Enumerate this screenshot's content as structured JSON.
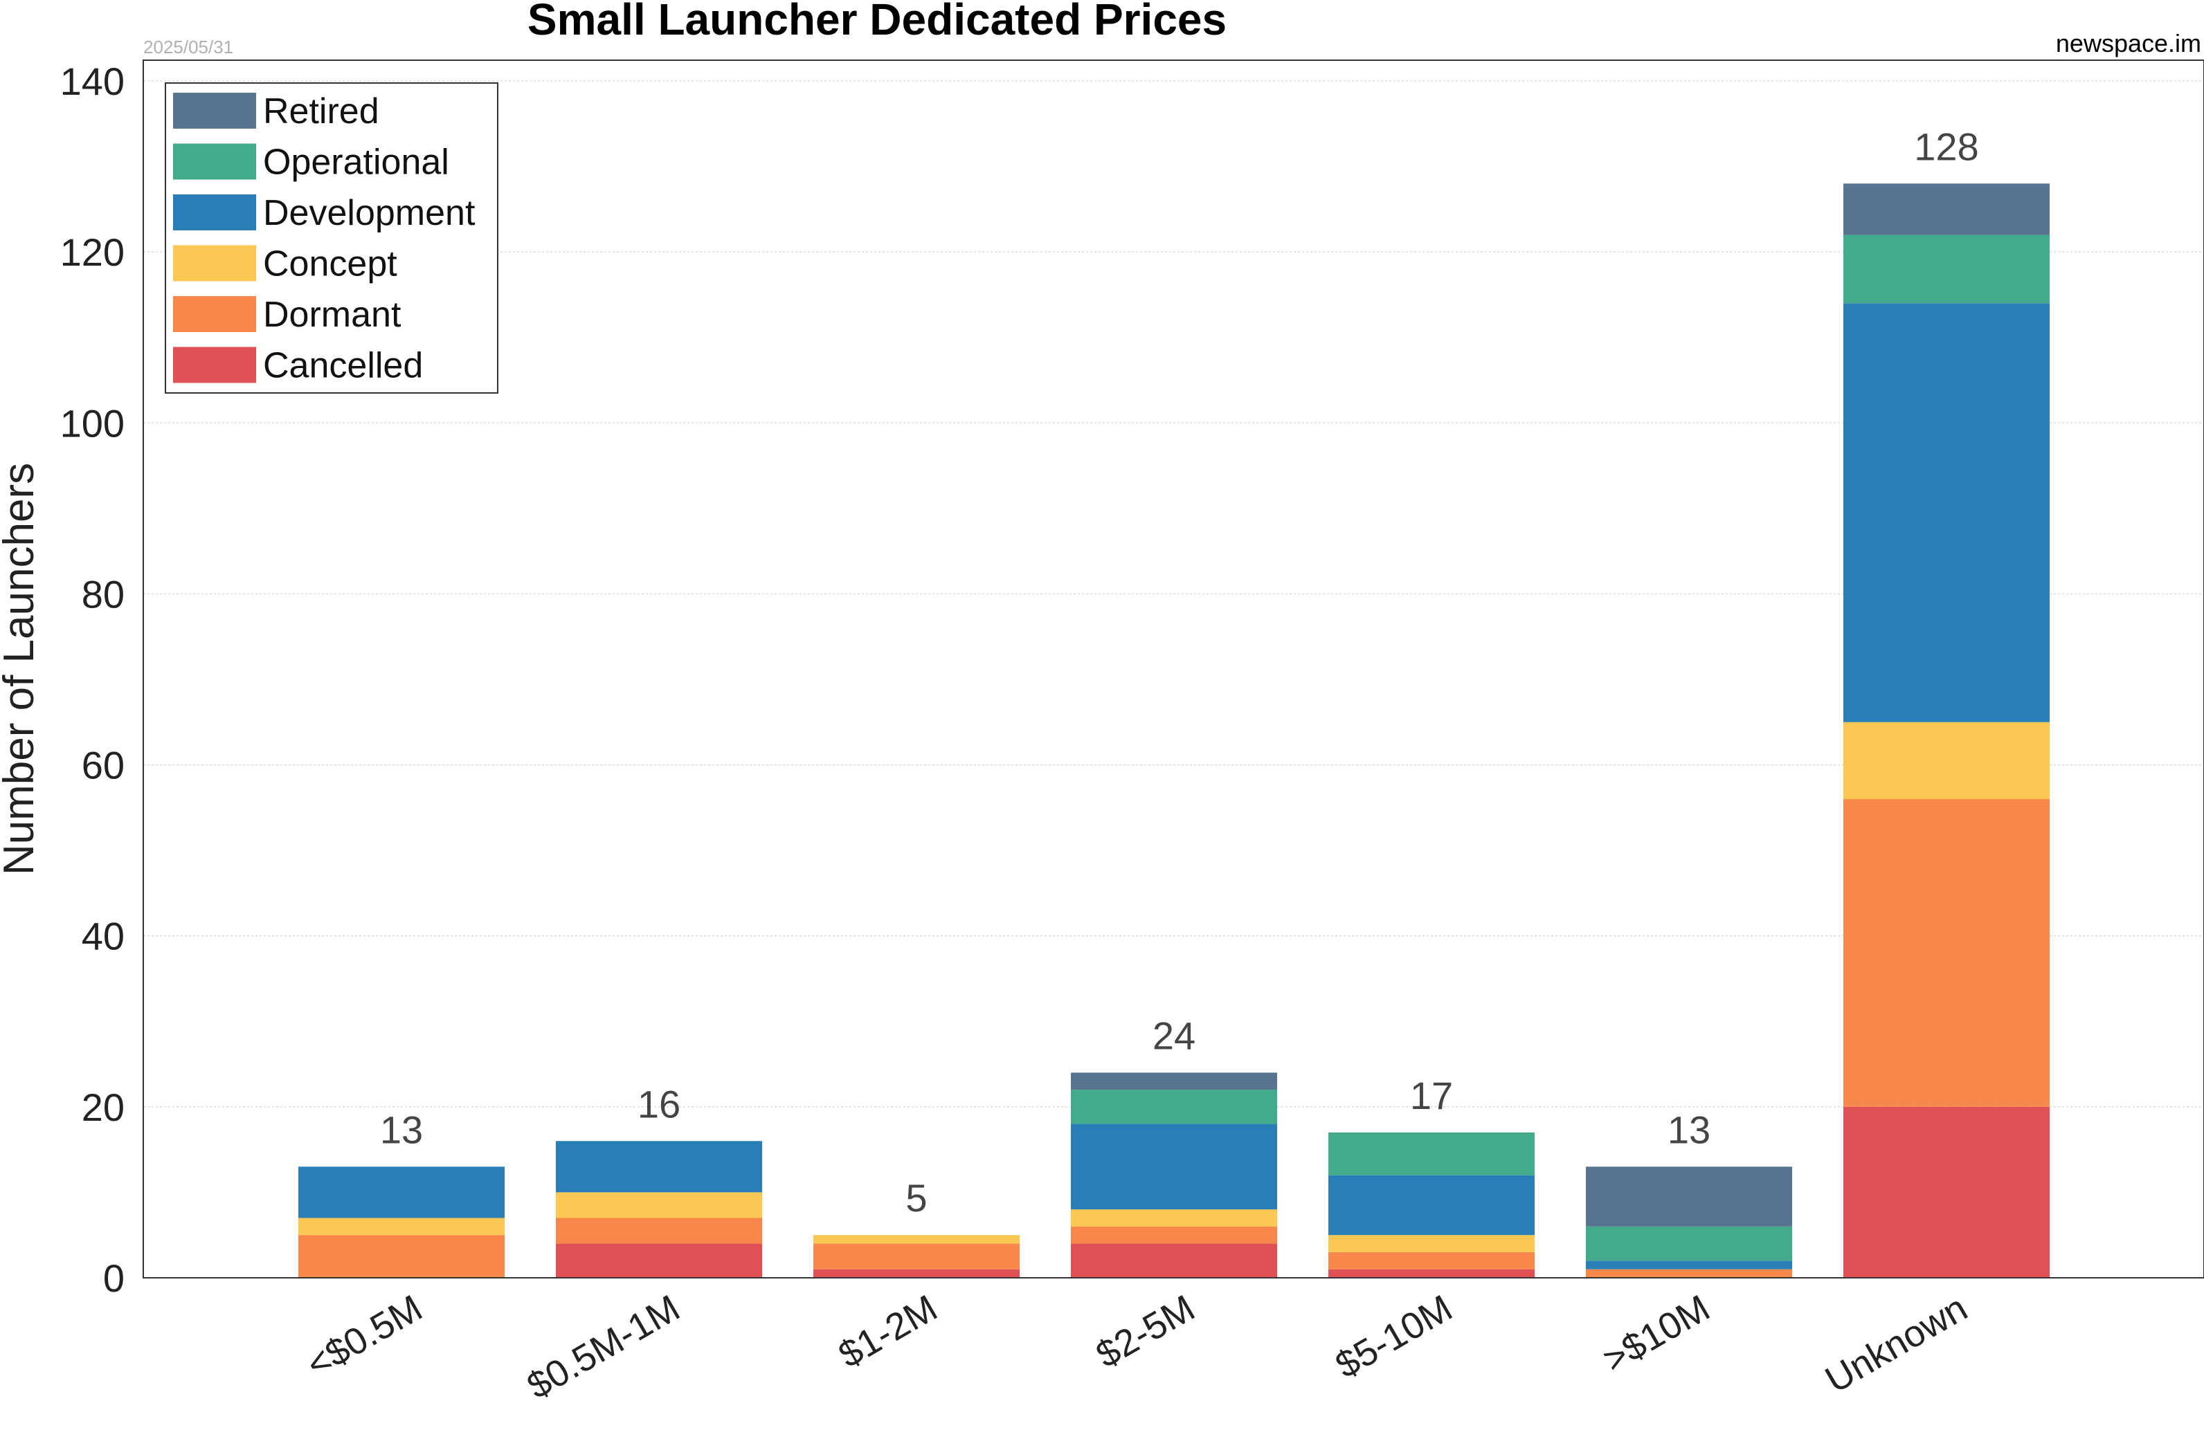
{
  "chart_data": {
    "type": "bar",
    "stacked": true,
    "title": "Small Launcher Dedicated Prices",
    "date_label": "2025/05/31",
    "source_label": "newspace.im",
    "ylabel": "Number of Launchers",
    "xlabel": "",
    "ylim": [
      0,
      140
    ],
    "yticks": [
      0,
      20,
      40,
      60,
      80,
      100,
      120,
      140
    ],
    "grid": true,
    "legend_position": "top-left",
    "categories": [
      "<$0.5M",
      "$0.5M-1M",
      "$1-2M",
      "$2-5M",
      "$5-10M",
      ">$10M",
      "Unknown"
    ],
    "series": [
      {
        "name": "Cancelled",
        "color": "#e05055",
        "values": [
          0,
          4,
          1,
          4,
          1,
          0,
          20
        ]
      },
      {
        "name": "Dormant",
        "color": "#f8874b",
        "values": [
          5,
          3,
          3,
          2,
          2,
          1,
          36
        ]
      },
      {
        "name": "Concept",
        "color": "#f9c752",
        "values": [
          2,
          3,
          1,
          2,
          2,
          0,
          9
        ]
      },
      {
        "name": "Development",
        "color": "#2a7eb8",
        "values": [
          6,
          6,
          0,
          10,
          7,
          1,
          49
        ]
      },
      {
        "name": "Operational",
        "color": "#43aa8b",
        "values": [
          0,
          0,
          0,
          4,
          5,
          4,
          8
        ]
      },
      {
        "name": "Retired",
        "color": "#577590",
        "values": [
          0,
          0,
          0,
          2,
          0,
          7,
          6
        ]
      }
    ],
    "totals": [
      "13",
      "16",
      "5",
      "24",
      "17",
      "13",
      "128"
    ]
  }
}
